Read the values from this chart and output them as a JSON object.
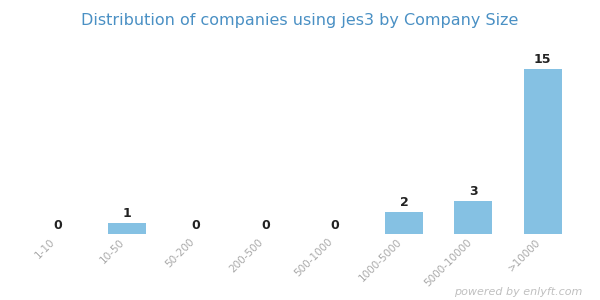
{
  "title": "Distribution of companies using jes3 by Company Size",
  "categories": [
    "1-10",
    "10-50",
    "50-200",
    "200-500",
    "500-1000",
    "1000-5000",
    "5000-10000",
    ">10000"
  ],
  "values": [
    0,
    1,
    0,
    0,
    0,
    2,
    3,
    15
  ],
  "bar_color": "#85C1E3",
  "title_color": "#4A90C4",
  "label_color": "#222222",
  "tick_color": "#aaaaaa",
  "background_color": "#ffffff",
  "watermark": "powered by enlyft.com",
  "watermark_color": "#c0c0c0",
  "ylim": [
    0,
    18
  ],
  "title_fontsize": 11.5,
  "label_fontsize": 9,
  "tick_fontsize": 7.5,
  "watermark_fontsize": 8
}
